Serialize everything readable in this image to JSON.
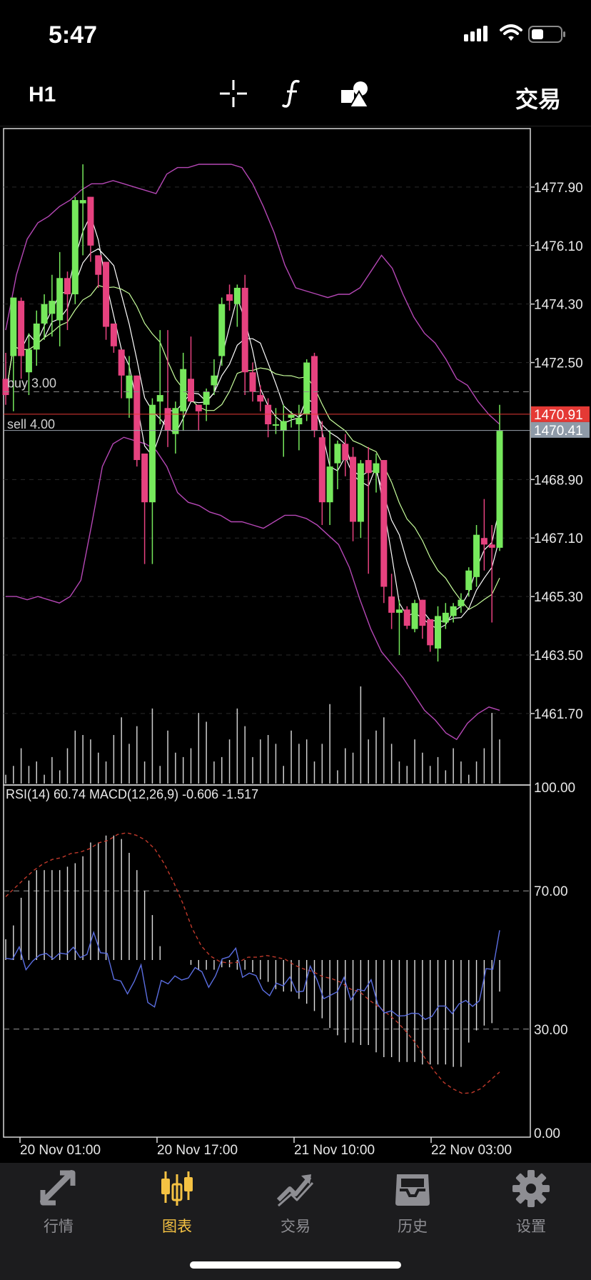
{
  "status_bar": {
    "time": "5:47"
  },
  "toolbar": {
    "timeframe": "H1",
    "trade_label": "交易"
  },
  "chart_data": [
    {
      "type": "candlestick",
      "symbol_timeframe": "H1",
      "y_ticks": [
        "1477.90",
        "1476.10",
        "1474.30",
        "1472.50",
        "1468.90",
        "1467.10",
        "1465.30",
        "1463.50",
        "1461.70"
      ],
      "ylim": [
        1459.5,
        1479.7
      ],
      "price_labels": {
        "bid": "1470.91",
        "ask": "1470.41"
      },
      "order_lines": [
        {
          "label": "buy 3.00",
          "price": 1471.6
        },
        {
          "label": "sell 4.00",
          "price": 1470.91
        }
      ],
      "candles": [
        [
          1472.0,
          1472.8,
          1471.2,
          1471.5
        ],
        [
          1472.7,
          1474.5,
          1471.0,
          1474.5
        ],
        [
          1474.4,
          1474.5,
          1472.0,
          1472.7
        ],
        [
          1472.2,
          1473.4,
          1471.5,
          1472.9
        ],
        [
          1472.9,
          1474.1,
          1472.4,
          1473.7
        ],
        [
          1473.7,
          1474.6,
          1473.2,
          1474.3
        ],
        [
          1474.0,
          1475.2,
          1473.3,
          1474.4
        ],
        [
          1473.8,
          1475.9,
          1473.0,
          1475.1
        ],
        [
          1475.1,
          1475.3,
          1473.5,
          1474.6
        ],
        [
          1474.6,
          1477.6,
          1474.3,
          1477.5
        ],
        [
          1477.4,
          1478.6,
          1475.8,
          1477.5
        ],
        [
          1477.6,
          1477.6,
          1475.6,
          1476.1
        ],
        [
          1475.8,
          1475.8,
          1474.8,
          1475.2
        ],
        [
          1475.6,
          1475.6,
          1473.2,
          1473.6
        ],
        [
          1473.7,
          1473.7,
          1472.8,
          1473.0
        ],
        [
          1472.9,
          1472.9,
          1471.4,
          1472.1
        ],
        [
          1471.4,
          1472.7,
          1470.8,
          1472.1
        ],
        [
          1472.1,
          1472.1,
          1469.3,
          1469.5
        ],
        [
          1469.7,
          1469.7,
          1466.3,
          1468.2
        ],
        [
          1468.2,
          1471.4,
          1466.3,
          1471.2
        ],
        [
          1471.3,
          1473.5,
          1470.6,
          1471.5
        ],
        [
          1471.1,
          1473.5,
          1469.9,
          1470.4
        ],
        [
          1470.3,
          1471.3,
          1469.7,
          1471.1
        ],
        [
          1471.0,
          1472.8,
          1470.4,
          1472.3
        ],
        [
          1472.0,
          1473.3,
          1471.3,
          1471.3
        ],
        [
          1471.2,
          1471.2,
          1470.4,
          1471.0
        ],
        [
          1471.2,
          1471.7,
          1470.7,
          1471.6
        ],
        [
          1471.8,
          1472.6,
          1471.5,
          1472.1
        ],
        [
          1472.7,
          1474.5,
          1472.4,
          1474.3
        ],
        [
          1474.6,
          1474.9,
          1474.1,
          1474.4
        ],
        [
          1474.3,
          1474.9,
          1473.6,
          1474.8
        ],
        [
          1474.8,
          1475.2,
          1471.5,
          1472.2
        ],
        [
          1472.2,
          1472.5,
          1471.3,
          1471.6
        ],
        [
          1471.5,
          1471.8,
          1471.0,
          1471.3
        ],
        [
          1471.2,
          1471.4,
          1470.2,
          1470.6
        ],
        [
          1470.6,
          1471.1,
          1470.3,
          1470.6
        ],
        [
          1470.4,
          1471.2,
          1469.6,
          1470.7
        ],
        [
          1470.8,
          1471.0,
          1470.5,
          1470.9
        ],
        [
          1470.6,
          1471.2,
          1469.8,
          1470.8
        ],
        [
          1470.9,
          1472.6,
          1470.7,
          1472.5
        ],
        [
          1472.7,
          1472.8,
          1470.2,
          1470.4
        ],
        [
          1470.2,
          1470.7,
          1467.5,
          1468.2
        ],
        [
          1468.2,
          1470.4,
          1467.5,
          1469.3
        ],
        [
          1469.4,
          1470.1,
          1468.6,
          1470.0
        ],
        [
          1470.0,
          1470.3,
          1469.0,
          1469.5
        ],
        [
          1469.6,
          1469.9,
          1467.0,
          1467.6
        ],
        [
          1467.6,
          1469.5,
          1467.1,
          1469.4
        ],
        [
          1469.5,
          1469.9,
          1466.0,
          1469.1
        ],
        [
          1469.1,
          1469.7,
          1468.5,
          1469.4
        ],
        [
          1469.5,
          1469.5,
          1465.1,
          1465.6
        ],
        [
          1465.3,
          1466.0,
          1464.3,
          1464.8
        ],
        [
          1464.8,
          1465.2,
          1463.5,
          1464.9
        ],
        [
          1464.9,
          1465.0,
          1464.3,
          1464.4
        ],
        [
          1464.3,
          1465.2,
          1464.2,
          1465.1
        ],
        [
          1465.2,
          1465.2,
          1464.0,
          1464.4
        ],
        [
          1464.6,
          1464.6,
          1463.6,
          1463.8
        ],
        [
          1463.7,
          1465.0,
          1463.3,
          1464.7
        ],
        [
          1464.5,
          1465.1,
          1464.3,
          1464.8
        ],
        [
          1464.7,
          1465.1,
          1464.5,
          1465.0
        ],
        [
          1465.0,
          1465.4,
          1464.8,
          1465.2
        ],
        [
          1465.5,
          1466.2,
          1465.3,
          1466.1
        ],
        [
          1465.9,
          1467.5,
          1465.6,
          1467.2
        ],
        [
          1467.1,
          1468.3,
          1466.1,
          1466.9
        ],
        [
          1466.9,
          1467.5,
          1464.5,
          1466.8
        ],
        [
          1466.8,
          1471.2,
          1466.7,
          1470.4
        ]
      ],
      "volume": [
        2,
        4,
        8,
        4,
        5,
        2,
        6,
        3,
        8,
        12,
        11,
        10,
        7,
        5,
        11,
        15,
        9,
        13,
        5,
        17,
        4,
        12,
        7,
        6,
        8,
        16,
        14,
        5,
        6,
        10,
        17,
        13,
        6,
        10,
        11,
        9,
        4,
        12,
        9,
        10,
        5,
        9,
        18,
        3,
        8,
        7,
        22,
        10,
        12,
        15,
        9,
        5,
        4,
        10,
        7,
        4,
        6,
        3,
        8,
        5,
        2,
        5,
        8,
        16,
        10
      ],
      "upper_band": [
        1473.5,
        1475.2,
        1476.3,
        1476.8,
        1477.0,
        1477.3,
        1477.5,
        1477.8,
        1478.0,
        1478.0,
        1478.1,
        1478.0,
        1477.9,
        1477.8,
        1477.7,
        1478.3,
        1478.5,
        1478.5,
        1478.6,
        1478.6,
        1478.6,
        1478.6,
        1478.5,
        1478.0,
        1477.3,
        1476.5,
        1475.5,
        1474.8,
        1474.7,
        1474.6,
        1474.5,
        1474.6,
        1474.6,
        1474.8,
        1475.3,
        1475.8,
        1475.4,
        1474.6,
        1473.9,
        1473.4,
        1473.1,
        1472.6,
        1472.0,
        1471.8,
        1471.3,
        1470.9,
        1470.6
      ],
      "lower_band": [
        1465.3,
        1465.3,
        1465.2,
        1465.3,
        1465.2,
        1465.1,
        1465.3,
        1465.8,
        1467.5,
        1469.3,
        1470.0,
        1470.2,
        1470.1,
        1470.0,
        1469.8,
        1469.3,
        1468.5,
        1468.2,
        1468.1,
        1467.9,
        1467.8,
        1467.6,
        1467.6,
        1467.5,
        1467.4,
        1467.6,
        1467.8,
        1467.8,
        1467.7,
        1467.5,
        1467.2,
        1466.9,
        1466.2,
        1465.2,
        1464.3,
        1463.6,
        1463.2,
        1462.8,
        1462.3,
        1461.8,
        1461.5,
        1461.1,
        1460.9,
        1461.4,
        1461.7,
        1461.9,
        1461.8
      ]
    },
    {
      "type": "oscillator",
      "legend": "RSI(14) 60.74 MACD(12,26,9) -0.606 -1.517",
      "y_ticks": [
        "100.00",
        "70.00",
        "30.00",
        "0.00"
      ],
      "ylim": [
        0,
        100
      ],
      "levels": [
        70,
        30
      ],
      "rsi": [
        50.5,
        50.2,
        53.8,
        47.2,
        49.7,
        51.4,
        51.9,
        50.3,
        52.0,
        51.7,
        53.7,
        50.7,
        51.6,
        58.0,
        52.1,
        51.9,
        44.4,
        43.9,
        40.2,
        43.8,
        48.6,
        37.7,
        36.4,
        44.1,
        43.1,
        45.4,
        44.2,
        44.8,
        47.8,
        46.6,
        42.1,
        45.4,
        50.3,
        50.9,
        53.4,
        45.0,
        46.2,
        45.5,
        41.3,
        39.7,
        43.3,
        42.5,
        45.1,
        40.7,
        41.0,
        48.2,
        44.3,
        38.8,
        39.8,
        40.8,
        45.0,
        38.4,
        41.5,
        41.1,
        44.3,
        37.1,
        34.7,
        35.3,
        33.8,
        33.9,
        34.6,
        34.5,
        32.8,
        33.7,
        36.7,
        36.7,
        34.5,
        37.3,
        38.3,
        36.6,
        38.2,
        47.5,
        47.3,
        58.6
      ],
      "signal": [
        68.3,
        70.9,
        73.5,
        75.9,
        77.8,
        79.1,
        79.6,
        80.8,
        81.2,
        82.2,
        83.9,
        84.6,
        86.3,
        86.8,
        86.1,
        84.7,
        82.1,
        77.9,
        72.6,
        66.4,
        59.2,
        54.0,
        51.1,
        49.5,
        49.1,
        49.4,
        50.8,
        50.8,
        51.3,
        50.8,
        50.2,
        48.5,
        47.4,
        46.6,
        45.2,
        44.6,
        43.5,
        41.6,
        40.8,
        38.4,
        36.5,
        34.4,
        32.1,
        29.2,
        25.9,
        21.6,
        17.8,
        14.6,
        12.7,
        11.4,
        11.6,
        12.8,
        15.2,
        17.6
      ],
      "histogram": [
        56,
        60,
        68,
        73,
        76,
        76,
        76,
        76,
        77,
        78,
        80,
        84,
        84,
        86,
        86,
        85,
        81,
        76,
        70,
        63,
        54,
        50,
        50,
        50,
        50,
        50,
        50,
        50,
        50,
        50,
        50,
        50,
        50,
        50,
        50,
        50,
        50,
        50,
        50,
        50,
        50,
        50,
        50,
        50,
        50,
        50,
        50,
        50,
        50,
        50,
        50,
        50,
        50,
        50,
        50,
        50,
        50,
        50,
        50,
        50,
        50,
        50,
        50,
        50,
        50
      ],
      "macd_depth": [
        0,
        0,
        0,
        0,
        0,
        0,
        0,
        0,
        0,
        0,
        0,
        0,
        0,
        0,
        0,
        0,
        0,
        0,
        0,
        0,
        0,
        0,
        0,
        0,
        2,
        4,
        4,
        4,
        3,
        3,
        4,
        4,
        5,
        8,
        9,
        12,
        13,
        13,
        16,
        18,
        21,
        24,
        28,
        31,
        34,
        34,
        35,
        35,
        38,
        40,
        40,
        42,
        42,
        42,
        43,
        43,
        43,
        43,
        44,
        44,
        34,
        29,
        27,
        26,
        13
      ]
    }
  ],
  "x_ticks": [
    "20 Nov 01:00",
    "20 Nov 17:00",
    "21 Nov 10:00",
    "22 Nov 03:00"
  ],
  "tabs": [
    {
      "label": "行情",
      "icon": "quotes-arrows-icon"
    },
    {
      "label": "图表",
      "icon": "candlestick-chart-icon"
    },
    {
      "label": "交易",
      "icon": "trade-trend-icon"
    },
    {
      "label": "历史",
      "icon": "history-tray-icon"
    },
    {
      "label": "设置",
      "icon": "settings-gear-icon"
    }
  ],
  "colors": {
    "bull": "#76e85c",
    "bear": "#e6427f",
    "band": "#b547b5",
    "ma1": "#ffffff",
    "ma2": "#c8ff9c",
    "bid_tag": "#e53935",
    "ask_tag": "#8e9aa8",
    "active_tab": "#f5c243"
  }
}
